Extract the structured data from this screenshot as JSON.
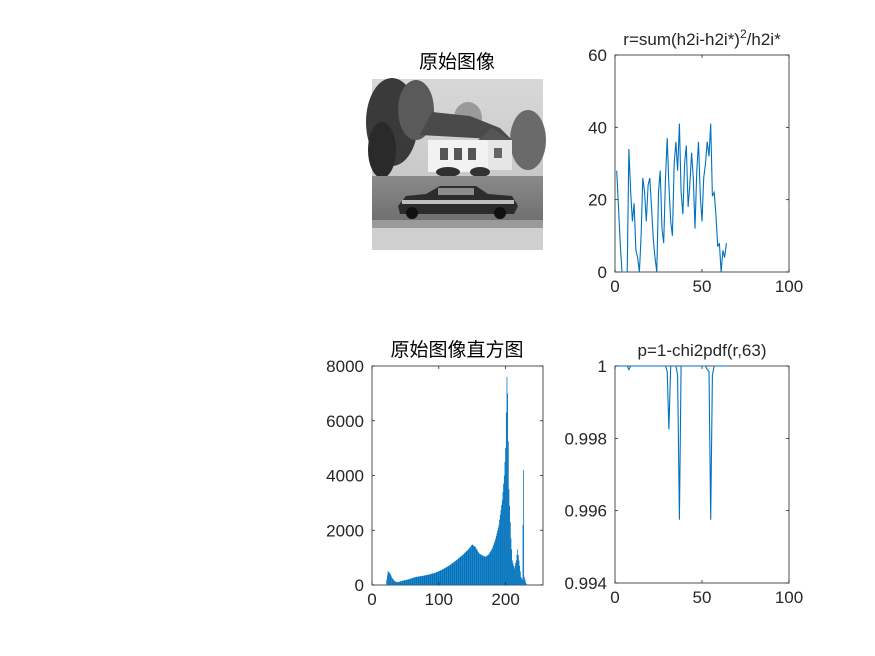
{
  "figure": {
    "image_panel": {
      "title": "原始图像"
    }
  },
  "chart_data": [
    {
      "type": "bar",
      "title": "原始图像直方图",
      "xlim": [
        0,
        256
      ],
      "ylim": [
        0,
        8000
      ],
      "xticks": [
        "0",
        "100",
        "200"
      ],
      "yticks": [
        "0",
        "2000",
        "4000",
        "6000",
        "8000"
      ],
      "color": "#0072BD",
      "envelope": [
        [
          21,
          0
        ],
        [
          22,
          200
        ],
        [
          24,
          500
        ],
        [
          27,
          420
        ],
        [
          30,
          260
        ],
        [
          34,
          140
        ],
        [
          38,
          100
        ],
        [
          45,
          150
        ],
        [
          55,
          210
        ],
        [
          65,
          290
        ],
        [
          75,
          330
        ],
        [
          85,
          380
        ],
        [
          95,
          450
        ],
        [
          105,
          560
        ],
        [
          115,
          700
        ],
        [
          125,
          880
        ],
        [
          135,
          1080
        ],
        [
          145,
          1320
        ],
        [
          150,
          1480
        ],
        [
          155,
          1380
        ],
        [
          160,
          1160
        ],
        [
          165,
          1080
        ],
        [
          170,
          1030
        ],
        [
          175,
          1120
        ],
        [
          180,
          1330
        ],
        [
          185,
          1680
        ],
        [
          190,
          2200
        ],
        [
          195,
          3100
        ],
        [
          198,
          4000
        ],
        [
          200,
          5000
        ],
        [
          202,
          7600
        ],
        [
          203,
          7000
        ],
        [
          205,
          3500
        ],
        [
          208,
          1700
        ],
        [
          210,
          900
        ],
        [
          213,
          600
        ],
        [
          216,
          900
        ],
        [
          218,
          1300
        ],
        [
          220,
          900
        ],
        [
          223,
          300
        ],
        [
          225,
          200
        ],
        [
          227,
          4200
        ],
        [
          228,
          300
        ],
        [
          230,
          100
        ],
        [
          232,
          0
        ]
      ]
    },
    {
      "type": "line",
      "title": "r=sum(h2i-h2i*)",
      "title_superscript": "2",
      "title_suffix": "/h2i*",
      "xlim": [
        0,
        100
      ],
      "ylim": [
        0,
        60
      ],
      "xticks": [
        "0",
        "50",
        "100"
      ],
      "yticks": [
        "0",
        "20",
        "40",
        "60"
      ],
      "color": "#0072BD",
      "x": [
        1,
        2,
        3,
        4,
        5,
        6,
        7,
        8,
        9,
        10,
        11,
        12,
        13,
        14,
        15,
        16,
        17,
        18,
        19,
        20,
        21,
        22,
        23,
        24,
        25,
        26,
        27,
        28,
        29,
        30,
        31,
        32,
        33,
        34,
        35,
        36,
        37,
        38,
        39,
        40,
        41,
        42,
        43,
        44,
        45,
        46,
        47,
        48,
        49,
        50,
        51,
        52,
        53,
        54,
        55,
        56,
        57,
        58,
        59,
        60,
        61,
        62,
        63,
        64
      ],
      "y": [
        28,
        18,
        8,
        0,
        0,
        0,
        0,
        34,
        22,
        14,
        19,
        6,
        4,
        0,
        10,
        26,
        22,
        14,
        24,
        26,
        18,
        9,
        4,
        0,
        22,
        28,
        12,
        8,
        26,
        37,
        24,
        14,
        10,
        30,
        36,
        28,
        41,
        22,
        16,
        30,
        35,
        18,
        24,
        33,
        26,
        12,
        28,
        36,
        21,
        14,
        26,
        30,
        36,
        32,
        41,
        21,
        22,
        16,
        7,
        8,
        0,
        6,
        4,
        8
      ]
    },
    {
      "type": "line",
      "title": "p=1-chi2pdf(r,63)",
      "xlim": [
        0,
        100
      ],
      "ylim": [
        0.994,
        1
      ],
      "xticks": [
        "0",
        "50",
        "100"
      ],
      "yticks": [
        "0.994",
        "0.996",
        "0.998",
        "1"
      ],
      "color": "#0072BD",
      "x": [
        1,
        2,
        3,
        4,
        5,
        6,
        7,
        8,
        9,
        10,
        11,
        12,
        13,
        14,
        15,
        16,
        17,
        18,
        19,
        20,
        21,
        22,
        23,
        24,
        25,
        26,
        27,
        28,
        29,
        30,
        31,
        32,
        33,
        34,
        35,
        36,
        37,
        38,
        39,
        40,
        41,
        42,
        43,
        44,
        45,
        46,
        47,
        48,
        49,
        50,
        51,
        52,
        53,
        54,
        55,
        56,
        57,
        58,
        59,
        60,
        61,
        62,
        63,
        64
      ],
      "y": [
        1,
        1,
        1,
        1,
        1,
        1,
        1,
        0.9999,
        1,
        1,
        1,
        1,
        1,
        1,
        1,
        1,
        1,
        1,
        1,
        1,
        1,
        1,
        1,
        1,
        1,
        1,
        1,
        1,
        1,
        0.99985,
        0.99825,
        1,
        1,
        1,
        1,
        0.99975,
        0.99575,
        1,
        1,
        1,
        1,
        1,
        1,
        1,
        1,
        1,
        1,
        1,
        1,
        1,
        1,
        1,
        0.9999,
        0.99985,
        0.99575,
        0.99975,
        1,
        1,
        1,
        1,
        1,
        1,
        1,
        1
      ]
    }
  ]
}
